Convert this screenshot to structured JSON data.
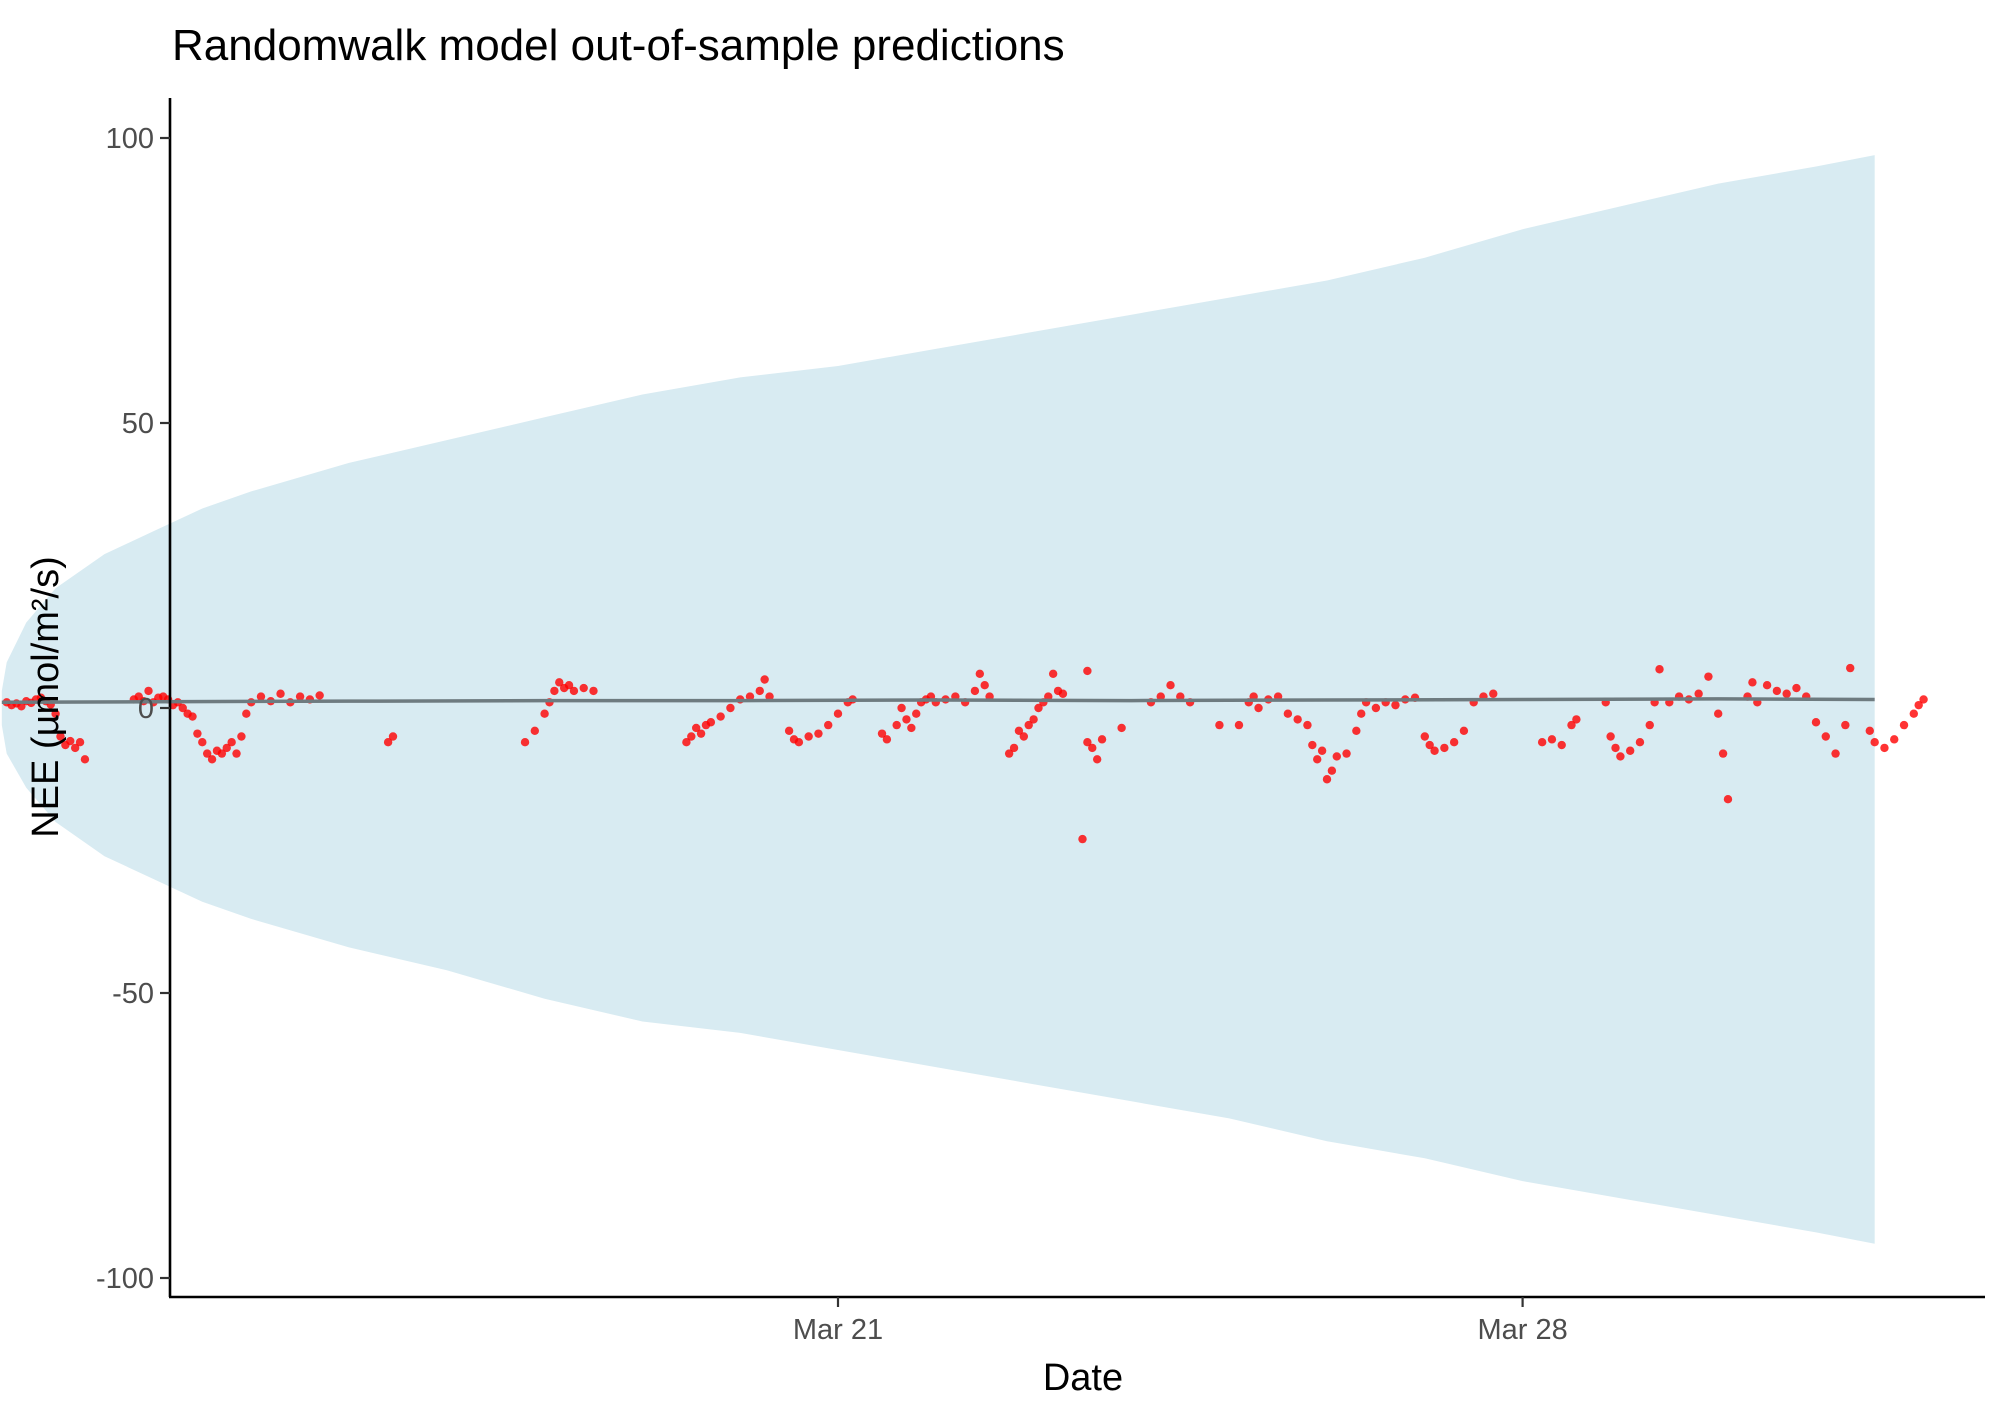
{
  "chart_data": {
    "type": "line",
    "title": "Randomwalk model out-of-sample predictions",
    "xlabel": "Date",
    "ylabel": "NEE (µmol/m²/s)",
    "ylim": [
      -100,
      100
    ],
    "yticks": [
      100,
      50,
      0,
      -50,
      -100
    ],
    "ytick_labels": [
      "100",
      "50",
      "0",
      "-50",
      "-100"
    ],
    "xlim_days": [
      -9.8,
      11.3
    ],
    "xticks": [
      {
        "label": "Mar 21",
        "day": 0
      },
      {
        "label": "Mar 28",
        "day": 7
      }
    ],
    "grid": false,
    "band": {
      "name": "prediction interval",
      "color": "#d8ebf2",
      "x_start_day": -8.55,
      "x_end_day": 10.6,
      "upper": [
        [
          -8.55,
          3
        ],
        [
          -8.5,
          8
        ],
        [
          -8.3,
          15
        ],
        [
          -8.0,
          21
        ],
        [
          -7.5,
          27
        ],
        [
          -7.0,
          31
        ],
        [
          -6.5,
          35
        ],
        [
          -6.0,
          38
        ],
        [
          -5.0,
          43
        ],
        [
          -4.0,
          47
        ],
        [
          -3.0,
          51
        ],
        [
          -2.0,
          55
        ],
        [
          -1.0,
          58
        ],
        [
          0.0,
          60
        ],
        [
          1.0,
          63
        ],
        [
          2.0,
          66
        ],
        [
          3.0,
          69
        ],
        [
          4.0,
          72
        ],
        [
          5.0,
          75
        ],
        [
          6.0,
          79
        ],
        [
          7.0,
          84
        ],
        [
          8.0,
          88
        ],
        [
          9.0,
          92
        ],
        [
          10.0,
          95
        ],
        [
          10.6,
          97
        ]
      ],
      "lower": [
        [
          -8.55,
          -3
        ],
        [
          -8.5,
          -8
        ],
        [
          -8.3,
          -14
        ],
        [
          -8.0,
          -20
        ],
        [
          -7.5,
          -26
        ],
        [
          -7.0,
          -30
        ],
        [
          -6.5,
          -34
        ],
        [
          -6.0,
          -37
        ],
        [
          -5.0,
          -42
        ],
        [
          -4.0,
          -46
        ],
        [
          -3.0,
          -51
        ],
        [
          -2.0,
          -55
        ],
        [
          -1.0,
          -57
        ],
        [
          0.0,
          -60
        ],
        [
          1.0,
          -63
        ],
        [
          2.0,
          -66
        ],
        [
          3.0,
          -69
        ],
        [
          4.0,
          -72
        ],
        [
          5.0,
          -76
        ],
        [
          6.0,
          -79
        ],
        [
          7.0,
          -83
        ],
        [
          8.0,
          -86
        ],
        [
          9.0,
          -89
        ],
        [
          10.0,
          -92
        ],
        [
          10.6,
          -94
        ]
      ]
    },
    "series": [
      {
        "type": "line",
        "color": "#6e7b80",
        "points": [
          [
            -8.55,
            1.0
          ],
          [
            -7.0,
            1.1
          ],
          [
            -5.0,
            1.2
          ],
          [
            -3.0,
            1.3
          ],
          [
            -1.0,
            1.3
          ],
          [
            1.0,
            1.4
          ],
          [
            3.0,
            1.3
          ],
          [
            5.0,
            1.4
          ],
          [
            7.0,
            1.5
          ],
          [
            9.0,
            1.6
          ],
          [
            10.6,
            1.5
          ]
        ]
      },
      {
        "type": "scatter",
        "color": "#ff0000",
        "points": [
          [
            -8.5,
            1.0
          ],
          [
            -8.45,
            0.5
          ],
          [
            -8.4,
            0.8
          ],
          [
            -8.35,
            0.3
          ],
          [
            -8.3,
            1.2
          ],
          [
            -8.25,
            0.9
          ],
          [
            -8.2,
            1.5
          ],
          [
            -8.15,
            1.8
          ],
          [
            -8.1,
            1.2
          ],
          [
            -8.05,
            0.6
          ],
          [
            -8.0,
            -1.0
          ],
          [
            -7.95,
            -5.0
          ],
          [
            -7.9,
            -6.5
          ],
          [
            -7.85,
            -5.8
          ],
          [
            -7.8,
            -7.0
          ],
          [
            -7.75,
            -6.0
          ],
          [
            -7.7,
            -9.0
          ],
          [
            -7.2,
            1.5
          ],
          [
            -7.15,
            2.0
          ],
          [
            -7.1,
            1.2
          ],
          [
            -7.05,
            3.0
          ],
          [
            -7.0,
            1.0
          ],
          [
            -6.95,
            1.8
          ],
          [
            -6.9,
            2.0
          ],
          [
            -6.85,
            1.5
          ],
          [
            -6.8,
            0.5
          ],
          [
            -6.75,
            1.0
          ],
          [
            -6.7,
            0.0
          ],
          [
            -6.65,
            -1.0
          ],
          [
            -6.6,
            -1.5
          ],
          [
            -6.55,
            -4.5
          ],
          [
            -6.5,
            -6.0
          ],
          [
            -6.45,
            -8.0
          ],
          [
            -6.4,
            -9.0
          ],
          [
            -6.35,
            -7.5
          ],
          [
            -6.3,
            -8.0
          ],
          [
            -6.25,
            -7.0
          ],
          [
            -6.2,
            -6.0
          ],
          [
            -6.15,
            -8.0
          ],
          [
            -6.1,
            -5.0
          ],
          [
            -6.05,
            -1.0
          ],
          [
            -6.0,
            1.0
          ],
          [
            -5.9,
            2.0
          ],
          [
            -5.8,
            1.2
          ],
          [
            -5.7,
            2.5
          ],
          [
            -5.6,
            1.0
          ],
          [
            -5.5,
            2.0
          ],
          [
            -5.4,
            1.5
          ],
          [
            -5.3,
            2.2
          ],
          [
            -4.6,
            -6.0
          ],
          [
            -4.55,
            -5.0
          ],
          [
            -3.2,
            -6.0
          ],
          [
            -3.1,
            -4.0
          ],
          [
            -3.0,
            -1.0
          ],
          [
            -2.95,
            1.0
          ],
          [
            -2.9,
            3.0
          ],
          [
            -2.85,
            4.5
          ],
          [
            -2.8,
            3.5
          ],
          [
            -2.75,
            4.0
          ],
          [
            -2.7,
            3.0
          ],
          [
            -2.6,
            3.5
          ],
          [
            -2.5,
            3.0
          ],
          [
            -1.55,
            -6.0
          ],
          [
            -1.5,
            -5.0
          ],
          [
            -1.45,
            -3.5
          ],
          [
            -1.4,
            -4.5
          ],
          [
            -1.35,
            -3.0
          ],
          [
            -1.3,
            -2.5
          ],
          [
            -1.2,
            -1.5
          ],
          [
            -1.1,
            0.0
          ],
          [
            -1.0,
            1.5
          ],
          [
            -0.9,
            2.0
          ],
          [
            -0.8,
            3.0
          ],
          [
            -0.75,
            5.0
          ],
          [
            -0.7,
            2.0
          ],
          [
            -0.5,
            -4.0
          ],
          [
            -0.45,
            -5.5
          ],
          [
            -0.4,
            -6.0
          ],
          [
            -0.3,
            -5.0
          ],
          [
            -0.2,
            -4.5
          ],
          [
            -0.1,
            -3.0
          ],
          [
            0.0,
            -1.0
          ],
          [
            0.1,
            1.0
          ],
          [
            0.15,
            1.5
          ],
          [
            0.45,
            -4.5
          ],
          [
            0.5,
            -5.5
          ],
          [
            0.6,
            -3.0
          ],
          [
            0.65,
            0.0
          ],
          [
            0.7,
            -2.0
          ],
          [
            0.75,
            -3.5
          ],
          [
            0.8,
            -1.0
          ],
          [
            0.85,
            1.0
          ],
          [
            0.9,
            1.5
          ],
          [
            0.95,
            2.0
          ],
          [
            1.0,
            1.0
          ],
          [
            1.1,
            1.5
          ],
          [
            1.2,
            2.0
          ],
          [
            1.3,
            1.0
          ],
          [
            1.4,
            3.0
          ],
          [
            1.45,
            6.0
          ],
          [
            1.5,
            4.0
          ],
          [
            1.55,
            2.0
          ],
          [
            1.75,
            -8.0
          ],
          [
            1.8,
            -7.0
          ],
          [
            1.85,
            -4.0
          ],
          [
            1.9,
            -5.0
          ],
          [
            1.95,
            -3.0
          ],
          [
            2.0,
            -2.0
          ],
          [
            2.05,
            0.0
          ],
          [
            2.1,
            1.0
          ],
          [
            2.15,
            2.0
          ],
          [
            2.2,
            6.0
          ],
          [
            2.25,
            3.0
          ],
          [
            2.3,
            2.5
          ],
          [
            2.55,
            -6.0
          ],
          [
            2.6,
            -7.0
          ],
          [
            2.65,
            -9.0
          ],
          [
            2.7,
            -5.5
          ],
          [
            2.5,
            -23.0
          ],
          [
            2.55,
            6.5
          ],
          [
            2.9,
            -3.5
          ],
          [
            3.2,
            1.0
          ],
          [
            3.3,
            2.0
          ],
          [
            3.4,
            4.0
          ],
          [
            3.5,
            2.0
          ],
          [
            3.6,
            1.0
          ],
          [
            3.9,
            -3.0
          ],
          [
            4.1,
            -3.0
          ],
          [
            4.2,
            1.0
          ],
          [
            4.25,
            2.0
          ],
          [
            4.3,
            0.0
          ],
          [
            4.4,
            1.5
          ],
          [
            4.5,
            2.0
          ],
          [
            4.6,
            -1.0
          ],
          [
            4.7,
            -2.0
          ],
          [
            4.8,
            -3.0
          ],
          [
            4.85,
            -6.5
          ],
          [
            4.9,
            -9.0
          ],
          [
            4.95,
            -7.5
          ],
          [
            5.0,
            -12.5
          ],
          [
            5.05,
            -11.0
          ],
          [
            5.1,
            -8.5
          ],
          [
            5.2,
            -8.0
          ],
          [
            5.3,
            -4.0
          ],
          [
            5.35,
            -1.0
          ],
          [
            5.4,
            1.0
          ],
          [
            5.5,
            0.0
          ],
          [
            5.6,
            1.0
          ],
          [
            5.7,
            0.5
          ],
          [
            5.8,
            1.5
          ],
          [
            5.9,
            1.8
          ],
          [
            6.0,
            -5.0
          ],
          [
            6.05,
            -6.5
          ],
          [
            6.1,
            -7.5
          ],
          [
            6.2,
            -7.0
          ],
          [
            6.3,
            -6.0
          ],
          [
            6.4,
            -4.0
          ],
          [
            6.5,
            1.0
          ],
          [
            6.6,
            2.0
          ],
          [
            6.7,
            2.5
          ],
          [
            7.2,
            -6.0
          ],
          [
            7.3,
            -5.5
          ],
          [
            7.4,
            -6.5
          ],
          [
            7.5,
            -3.0
          ],
          [
            7.55,
            -2.0
          ],
          [
            7.85,
            1.0
          ],
          [
            7.9,
            -5.0
          ],
          [
            7.95,
            -7.0
          ],
          [
            8.0,
            -8.5
          ],
          [
            8.1,
            -7.5
          ],
          [
            8.2,
            -6.0
          ],
          [
            8.3,
            -3.0
          ],
          [
            8.35,
            1.0
          ],
          [
            8.4,
            6.8
          ],
          [
            8.5,
            1.0
          ],
          [
            8.6,
            2.0
          ],
          [
            8.7,
            1.5
          ],
          [
            8.8,
            2.5
          ],
          [
            8.9,
            5.5
          ],
          [
            9.0,
            -1.0
          ],
          [
            9.05,
            -8.0
          ],
          [
            9.1,
            -16.0
          ],
          [
            9.3,
            2.0
          ],
          [
            9.35,
            4.5
          ],
          [
            9.4,
            1.0
          ],
          [
            9.5,
            4.0
          ],
          [
            9.6,
            3.0
          ],
          [
            9.7,
            2.5
          ],
          [
            9.8,
            3.5
          ],
          [
            9.9,
            2.0
          ],
          [
            10.0,
            -2.5
          ],
          [
            10.1,
            -5.0
          ],
          [
            10.2,
            -8.0
          ],
          [
            10.3,
            -3.0
          ],
          [
            10.35,
            7.0
          ],
          [
            10.55,
            -4.0
          ],
          [
            10.6,
            -6.0
          ],
          [
            10.7,
            -7.0
          ],
          [
            10.8,
            -5.5
          ],
          [
            10.9,
            -3.0
          ],
          [
            11.0,
            -1.0
          ],
          [
            11.05,
            0.5
          ],
          [
            11.1,
            1.5
          ]
        ]
      }
    ]
  }
}
